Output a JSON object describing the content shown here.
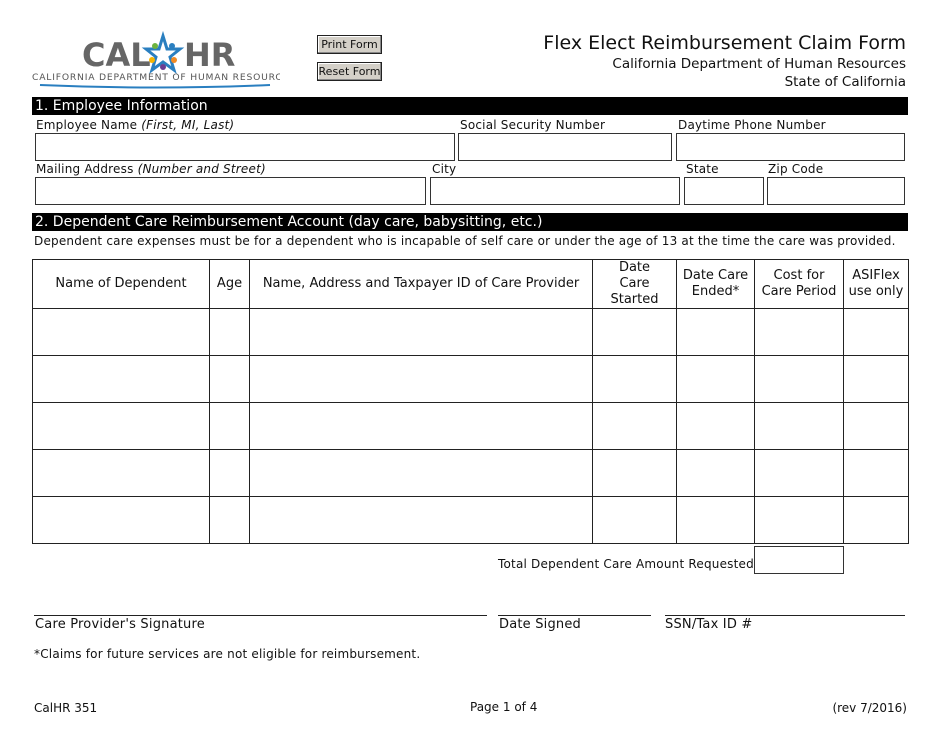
{
  "logo": {
    "text_left": "CAL",
    "text_right": "HR",
    "subtitle": "CALIFORNIA DEPARTMENT OF HUMAN RESOURCES"
  },
  "buttons": {
    "print": "Print Form",
    "reset": "Reset Form"
  },
  "header": {
    "title": "Flex Elect Reimbursement Claim Form",
    "dept": "California Department of Human Resources",
    "state": "State of California"
  },
  "section1": {
    "title": "1. Employee Information",
    "employee_name": "Employee Name",
    "employee_name_hint": "(First, MI, Last)",
    "ssn": "Social Security Number",
    "phone": "Daytime Phone Number",
    "address": "Mailing Address",
    "address_hint": "(Number and Street)",
    "city": "City",
    "state": "State",
    "zip": "Zip Code"
  },
  "section2": {
    "title": "2. Dependent Care Reimbursement Account (day care, babysitting, etc.)",
    "note": "Dependent care expenses must be for a dependent who is incapable of self care or under the age of 13 at the time the care was provided.",
    "columns": [
      "Name of Dependent",
      "Age",
      "Name, Address and Taxpayer ID of Care Provider",
      "Date Care Started",
      "Date Care Ended*",
      "Cost for Care Period",
      "ASIFlex use only"
    ],
    "total_label": "Total Dependent Care Amount Requested:",
    "signature": "Care Provider's Signature",
    "date_signed": "Date Signed",
    "ssn_tax": "SSN/Tax ID #",
    "footnote": "*Claims for future services are not eligible for reimbursement."
  },
  "footer": {
    "form_id": "CalHR 351",
    "page": "Page 1 of 4",
    "rev": "(rev 7/2016)"
  }
}
